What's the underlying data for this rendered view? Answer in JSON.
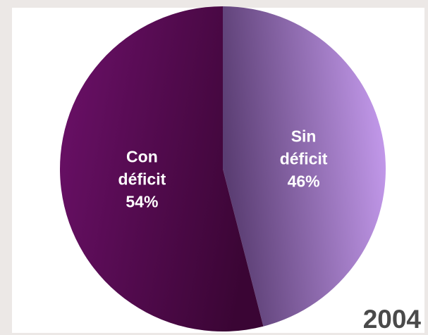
{
  "chart_data": {
    "type": "pie",
    "title": "",
    "year": "2004",
    "slices": [
      {
        "label_lines": [
          "Sin",
          "déficit",
          "46%"
        ],
        "name": "Sin déficit",
        "value": 46,
        "color_light": "#c79df0",
        "color_dark": "#5a3d72"
      },
      {
        "label_lines": [
          "Con",
          "déficit",
          "54%"
        ],
        "name": "Con déficit",
        "value": 54,
        "color_light": "#6a1067",
        "color_dark": "#3a0534"
      }
    ]
  },
  "colors": {
    "background": "#ece8e6",
    "panel": "#ffffff",
    "label_text": "#ffffff",
    "year_text": "#4a4a4a"
  }
}
